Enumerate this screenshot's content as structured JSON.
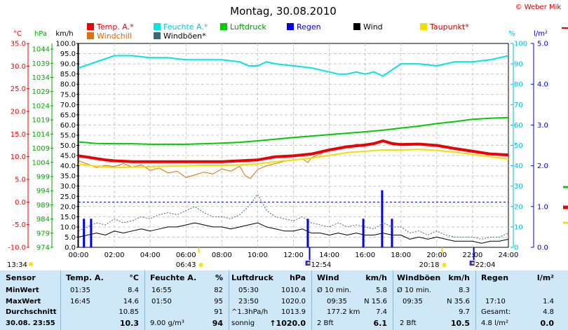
{
  "title": "Montag, 30.08.2010",
  "copyright": "© Weber Mike",
  "axis_units": {
    "temp": "°C",
    "pressure": "hPa",
    "speed": "km/h",
    "humidity": "%",
    "rain": "l/m²"
  },
  "legend": [
    {
      "label": "Temp. A.*",
      "color": "#ee0000"
    },
    {
      "label": "Feuchte A.*",
      "color": "#00e5e5"
    },
    {
      "label": "Luftdruck",
      "color": "#00cc00"
    },
    {
      "label": "Regen",
      "color": "#0000ee"
    },
    {
      "label": "Wind",
      "color": "#000000"
    },
    {
      "label": "Taupunkt*",
      "color": "#f0e000"
    },
    {
      "label": "Windchill",
      "color": "#e07010"
    },
    {
      "label": "Windböen*",
      "color": "#3a6a7a"
    }
  ],
  "sun_marks": [
    {
      "time": "06:43",
      "type": "sunrise"
    },
    {
      "time": "20:18",
      "type": "sunset"
    }
  ],
  "moon_marks": [
    {
      "time": "12:54"
    },
    {
      "time": "22:04"
    }
  ],
  "day_length_label": "13:34",
  "chart_data": {
    "type": "line",
    "xlabel": "",
    "x_ticks": [
      "00:00",
      "02:00",
      "04:00",
      "06:00",
      "08:00",
      "10:00",
      "12:00",
      "14:00",
      "16:00",
      "18:00",
      "20:00",
      "22:00",
      "24:00"
    ],
    "xlim": [
      0,
      24
    ],
    "axes": {
      "temp": {
        "unit": "°C",
        "range": [
          -10,
          35
        ],
        "ticks": [
          -10,
          -5,
          0,
          5,
          10,
          15,
          20,
          25,
          30,
          35
        ],
        "color": "#ee0000"
      },
      "pressure": {
        "unit": "hPa",
        "range": [
          974,
          1046
        ],
        "ticks": [
          974,
          979,
          984,
          989,
          994,
          999,
          1004,
          1009,
          1014,
          1019,
          1024,
          1029,
          1034,
          1039,
          1044
        ],
        "color": "#00aa00"
      },
      "speed": {
        "unit": "km/h",
        "range": [
          0,
          100
        ],
        "ticks": [
          0,
          5,
          10,
          15,
          20,
          25,
          30,
          35,
          40,
          45,
          50,
          55,
          60,
          65,
          70,
          75,
          80,
          85,
          90,
          95,
          100
        ],
        "color": "#000000"
      },
      "humidity": {
        "unit": "%",
        "range": [
          0,
          100
        ],
        "ticks": [
          0,
          10,
          20,
          30,
          40,
          50,
          60,
          70,
          80,
          90,
          100
        ],
        "color": "#00bcd4"
      },
      "rain": {
        "unit": "l/m²",
        "range": [
          0,
          5
        ],
        "ticks": [
          "0.0",
          "1.0",
          "2.0",
          "3.0",
          "4.0",
          "5.0"
        ],
        "color": "#0000ee"
      }
    },
    "grid": true,
    "series": [
      {
        "name": "Temp. A.*",
        "axis": "temp",
        "color": "#ee0000",
        "width": 4,
        "x": [
          0,
          0.5,
          1,
          1.5,
          2,
          3,
          4,
          5,
          6,
          7,
          8,
          9,
          10,
          11,
          12,
          13,
          14,
          15,
          16,
          16.5,
          17,
          17.5,
          18,
          19,
          20,
          21,
          22,
          23,
          24
        ],
        "y": [
          10.2,
          9.9,
          9.6,
          9.3,
          9.1,
          8.9,
          8.9,
          8.9,
          8.9,
          8.9,
          8.9,
          9.1,
          9.3,
          10.0,
          10.2,
          10.6,
          11.5,
          12.2,
          12.6,
          12.9,
          13.5,
          12.9,
          12.7,
          12.8,
          12.5,
          11.8,
          11.2,
          10.6,
          10.4
        ]
      },
      {
        "name": "Feuchte A.*",
        "axis": "humidity",
        "color": "#00e5e5",
        "width": 2,
        "x": [
          0,
          1,
          2,
          3,
          4,
          5,
          6,
          7,
          8,
          9,
          9.5,
          10,
          10.5,
          11,
          12,
          13,
          14,
          14.5,
          15,
          15.5,
          16,
          16.5,
          17,
          17.5,
          18,
          19,
          20,
          21,
          22,
          23,
          24
        ],
        "y": [
          88,
          91,
          94,
          94,
          93,
          93,
          92,
          92,
          92,
          91,
          89,
          89,
          91,
          90,
          89,
          88,
          86,
          85,
          85,
          86,
          85,
          86,
          84,
          87,
          90,
          90,
          89,
          91,
          91,
          92,
          94
        ]
      },
      {
        "name": "Luftdruck",
        "axis": "pressure",
        "color": "#00cc00",
        "width": 2,
        "x": [
          0,
          1,
          2,
          3,
          4,
          5,
          6,
          7,
          8,
          9,
          10,
          11,
          12,
          13,
          14,
          15,
          16,
          17,
          18,
          19,
          20,
          21,
          22,
          23,
          24
        ],
        "y": [
          1011.2,
          1010.7,
          1010.6,
          1010.6,
          1010.4,
          1010.4,
          1010.4,
          1010.6,
          1010.8,
          1011.1,
          1011.6,
          1012.2,
          1012.8,
          1013.3,
          1013.8,
          1014.3,
          1014.8,
          1015.4,
          1016.1,
          1016.8,
          1017.7,
          1018.4,
          1019.2,
          1019.6,
          1019.8
        ]
      },
      {
        "name": "Taupunkt*",
        "axis": "temp",
        "color": "#f0e000",
        "width": 2,
        "x": [
          0,
          1,
          2,
          3,
          4,
          5,
          6,
          7,
          8,
          9,
          10,
          11,
          12,
          13,
          14,
          15,
          16,
          17,
          18,
          19,
          20,
          21,
          22,
          23,
          24
        ],
        "y": [
          8.4,
          7.9,
          7.6,
          7.7,
          7.8,
          7.9,
          8.0,
          8.1,
          8.1,
          8.2,
          8.4,
          8.9,
          9.3,
          9.7,
          10.3,
          10.9,
          11.2,
          11.5,
          11.5,
          11.6,
          11.4,
          11.0,
          10.5,
          10.0,
          9.5
        ]
      },
      {
        "name": "Windchill",
        "axis": "temp",
        "color": "#e07010",
        "width": 1,
        "x": [
          0,
          0.5,
          1,
          1.5,
          2,
          2.5,
          3,
          3.5,
          4,
          4.5,
          5,
          5.5,
          6,
          6.5,
          7,
          7.5,
          8,
          8.5,
          9,
          9.3,
          9.6,
          10,
          10.5,
          11,
          11.5,
          12,
          12.5,
          12.8,
          13,
          13.5,
          14,
          14.5,
          15,
          15.5,
          16
        ],
        "y": [
          9.1,
          8.4,
          7.6,
          8.1,
          7.8,
          8.5,
          7.7,
          8.2,
          7.0,
          7.5,
          6.4,
          6.8,
          5.4,
          6.0,
          6.6,
          6.2,
          7.3,
          6.8,
          7.9,
          5.8,
          5.2,
          7.2,
          8.0,
          8.5,
          9.0,
          9.2,
          9.6,
          8.7,
          9.8,
          10.6,
          11.6,
          12.1,
          12.0,
          12.8,
          12.6
        ]
      },
      {
        "name": "Wind",
        "axis": "speed",
        "color": "#000000",
        "width": 1,
        "x": [
          0,
          0.5,
          1,
          1.5,
          2,
          2.5,
          3,
          3.5,
          4,
          4.5,
          5,
          5.5,
          6,
          6.5,
          7,
          7.5,
          8,
          8.5,
          9,
          9.5,
          10,
          10.5,
          11,
          11.5,
          12,
          12.5,
          13,
          13.5,
          14,
          14.5,
          15,
          15.5,
          16,
          16.5,
          17,
          17.5,
          18,
          18.5,
          19,
          19.5,
          20,
          20.5,
          21,
          21.5,
          22,
          22.5,
          23,
          23.5,
          24
        ],
        "y": [
          5,
          6,
          7,
          6,
          8,
          7,
          8,
          9,
          8,
          9,
          10,
          10,
          11,
          12,
          11,
          10,
          10,
          9,
          10,
          11,
          12,
          10,
          9,
          8,
          8,
          9,
          7,
          7,
          6,
          7,
          6,
          7,
          6,
          6,
          7,
          6,
          6,
          4,
          5,
          4,
          5,
          4,
          3,
          3,
          3,
          2,
          3,
          3,
          4
        ]
      },
      {
        "name": "Windböen*",
        "axis": "speed",
        "color": "#3a6a7a",
        "width": 1,
        "dash": "2,2",
        "x": [
          0,
          0.5,
          1,
          1.5,
          2,
          2.5,
          3,
          3.5,
          4,
          4.5,
          5,
          5.5,
          6,
          6.5,
          7,
          7.5,
          8,
          8.5,
          9,
          9.5,
          10,
          10.5,
          11,
          11.5,
          12,
          12.5,
          13,
          13.5,
          14,
          14.5,
          15,
          15.5,
          16,
          16.5,
          17,
          17.5,
          18,
          18.5,
          19,
          19.5,
          20,
          20.5,
          21,
          21.5,
          22,
          22.5,
          23,
          23.5,
          24
        ],
        "y": [
          8,
          10,
          12,
          11,
          14,
          12,
          13,
          15,
          14,
          16,
          17,
          16,
          18,
          20,
          17,
          15,
          15,
          14,
          16,
          20,
          26,
          18,
          15,
          14,
          13,
          15,
          12,
          11,
          10,
          12,
          10,
          11,
          10,
          9,
          12,
          10,
          10,
          7,
          8,
          6,
          8,
          6,
          5,
          5,
          5,
          4,
          5,
          5,
          7
        ]
      }
    ],
    "rain_bars": {
      "axis": "rain",
      "color": "#0000ee",
      "x": [
        0.3,
        0.7,
        12.8,
        15.9,
        16.95,
        17.5
      ],
      "y": [
        0.7,
        0.7,
        0.7,
        0.7,
        1.4,
        0.7
      ]
    }
  },
  "stats": {
    "headers": {
      "sensor": "Sensor",
      "temp": "Temp. A.",
      "temp_unit": "°C",
      "hum": "Feuchte A.",
      "hum_unit": "%",
      "press": "Luftdruck",
      "press_unit": "hPa",
      "wind": "Wind",
      "wind_unit": "km/h",
      "gust": "Windböen",
      "gust_unit": "km/h",
      "rain": "Regen",
      "rain_unit": "l/m²"
    },
    "rows": [
      {
        "label": "MinWert",
        "temp_time": "01:35",
        "temp": "8.4",
        "hum_time": "16:55",
        "hum": "82",
        "press_time": "05:30",
        "press": "1010.4",
        "wind_label": "Ø 10 min.",
        "wind": "5.8",
        "gust_label": "Ø 10 min.",
        "gust": "8.3",
        "rain_label": "",
        "rain": ""
      },
      {
        "label": "MaxWert",
        "temp_time": "16:45",
        "temp": "14.6",
        "hum_time": "01:50",
        "hum": "95",
        "press_time": "23:50",
        "press": "1020.0",
        "wind_label": "09:35",
        "wind": "N 15.6",
        "gust_label": "09:35",
        "gust": "N 35.6",
        "rain_label": "17:10",
        "rain": "1.4"
      },
      {
        "label": "Durchschnitt",
        "temp_time": "",
        "temp": "10.85",
        "hum_time": "",
        "hum": "91",
        "press_time": "^1.3hPa/h",
        "press": "1013.9",
        "wind_label": "177.2 km",
        "wind": "7.4",
        "gust_label": "",
        "gust": "9.7",
        "rain_label": "Gesamt:",
        "rain": "4.8"
      },
      {
        "label": "30.08. 23:55",
        "temp_time": "",
        "temp": "10.3",
        "hum_time": "9.00 g/m³",
        "hum": "94",
        "press_time": "sonnig",
        "press": "↑1020.0",
        "wind_label": "2 Bft",
        "wind": "6.1",
        "gust_label": "2 Bft",
        "gust": "10.5",
        "rain_label": "4.8 l/m²",
        "rain": "0.0"
      }
    ]
  }
}
